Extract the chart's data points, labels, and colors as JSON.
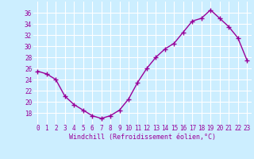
{
  "x": [
    0,
    1,
    2,
    3,
    4,
    5,
    6,
    7,
    8,
    9,
    10,
    11,
    12,
    13,
    14,
    15,
    16,
    17,
    18,
    19,
    20,
    21,
    22,
    23
  ],
  "y": [
    25.5,
    25.0,
    24.0,
    21.0,
    19.5,
    18.5,
    17.5,
    17.0,
    17.5,
    18.5,
    20.5,
    23.5,
    26.0,
    28.0,
    29.5,
    30.5,
    32.5,
    34.5,
    35.0,
    36.5,
    35.0,
    33.5,
    31.5,
    27.5
  ],
  "line_color": "#990099",
  "marker": "+",
  "marker_size": 4,
  "marker_linewidth": 1.0,
  "line_width": 1.0,
  "bg_color": "#cceeff",
  "grid_color": "#ffffff",
  "xlabel": "Windchill (Refroidissement éolien,°C)",
  "xlabel_color": "#990099",
  "tick_color": "#990099",
  "tick_fontsize": 5.5,
  "xlabel_fontsize": 6.0,
  "ylim": [
    16,
    38
  ],
  "yticks": [
    18,
    20,
    22,
    24,
    26,
    28,
    30,
    32,
    34,
    36
  ],
  "xlim": [
    -0.5,
    23.5
  ],
  "xticks": [
    0,
    1,
    2,
    3,
    4,
    5,
    6,
    7,
    8,
    9,
    10,
    11,
    12,
    13,
    14,
    15,
    16,
    17,
    18,
    19,
    20,
    21,
    22,
    23
  ]
}
